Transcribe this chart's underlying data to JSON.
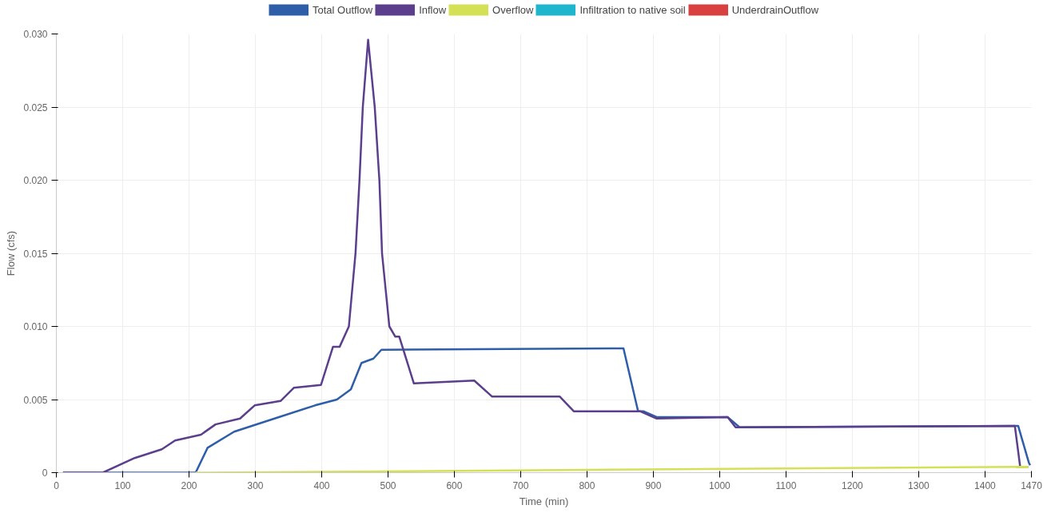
{
  "chart_data": {
    "type": "line",
    "xlabel": "Time (min)",
    "ylabel": "Flow (cfs)",
    "xlim": [
      0,
      1470
    ],
    "xticks": [
      0,
      100,
      200,
      300,
      400,
      500,
      600,
      700,
      800,
      900,
      1000,
      1100,
      1200,
      1300,
      1400,
      1470
    ],
    "ylim": [
      0,
      0.03
    ],
    "yticks": [
      {
        "value": 0,
        "label": "0"
      },
      {
        "value": 0.005,
        "label": "0.005"
      },
      {
        "value": 0.01,
        "label": "0.010"
      },
      {
        "value": 0.015,
        "label": "0.015"
      },
      {
        "value": 0.02,
        "label": "0.020"
      },
      {
        "value": 0.025,
        "label": "0.025"
      },
      {
        "value": 0.03,
        "label": "0.030"
      }
    ],
    "grid": true,
    "legend": "top",
    "marker": "none",
    "line_style": "solid",
    "series": [
      {
        "name": "Total Outflow",
        "color": "#2e5ea8",
        "x": [
          10,
          210,
          228,
          268,
          329,
          390,
          423,
          444,
          460,
          478,
          490,
          855,
          877,
          885,
          905,
          1012,
          1030,
          1450,
          1466,
          1468
        ],
        "values": [
          0,
          0,
          0.0017,
          0.0028,
          0.0037,
          0.0046,
          0.005,
          0.0057,
          0.0075,
          0.0078,
          0.0084,
          0.0085,
          0.0042,
          0.0042,
          0.0038,
          0.0038,
          0.0031,
          0.0032,
          0.0007,
          0.0005
        ]
      },
      {
        "name": "Inflow",
        "color": "#5b3f8c",
        "x": [
          10,
          70,
          118,
          159,
          179,
          218,
          240,
          277,
          299,
          338,
          358,
          399,
          417,
          427,
          441,
          451,
          457,
          462,
          470,
          480,
          487,
          491,
          502,
          511,
          517,
          539,
          630,
          657,
          759,
          780,
          880,
          905,
          1012,
          1024,
          1445,
          1453,
          1465
        ],
        "values": [
          0,
          0,
          0.001,
          0.0016,
          0.0022,
          0.0026,
          0.0033,
          0.0037,
          0.0046,
          0.0049,
          0.0058,
          0.006,
          0.0086,
          0.0086,
          0.01,
          0.015,
          0.02,
          0.025,
          0.0296,
          0.025,
          0.02,
          0.015,
          0.01,
          0.0093,
          0.0093,
          0.0061,
          0.0063,
          0.0052,
          0.0052,
          0.0042,
          0.0042,
          0.0037,
          0.0038,
          0.0031,
          0.0032,
          0.0004,
          0.0004
        ]
      },
      {
        "name": "Overflow",
        "color": "#d4e157",
        "x": [
          210,
          1465
        ],
        "values": [
          0,
          0.0004
        ]
      },
      {
        "name": "Infiltration to native soil",
        "color": "#1fb5cc",
        "values": [
          null
        ]
      },
      {
        "name": "UnderdrainOutflow",
        "color": "#d94040",
        "values": [
          null
        ]
      }
    ]
  }
}
